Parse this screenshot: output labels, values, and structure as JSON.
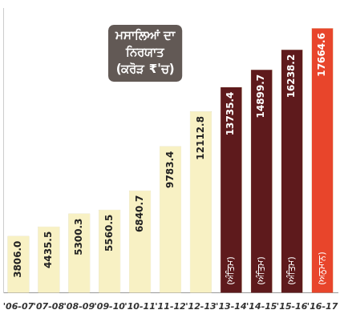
{
  "chart_data": {
    "type": "bar",
    "title": "ਮਸਾਲਿਆਂ ਦਾ ਨਿਰਯਾਤ",
    "subtitle": "(ਕਰੋੜ ₹'ਚ)",
    "categories": [
      "'06-07",
      "'07-08",
      "'08-09",
      "'09-10",
      "'10-11",
      "'11-12",
      "'12-13",
      "'13-14",
      "'14-15",
      "'15-16",
      "'16-17"
    ],
    "values": [
      3806.0,
      4435.5,
      5300.3,
      5560.5,
      6840.7,
      9783.4,
      12112.8,
      13735.4,
      14899.7,
      16238.2,
      17664.6
    ],
    "value_labels": [
      "3806.0",
      "4435.5",
      "5300.3",
      "5560.5",
      "6840.7",
      "9783.4",
      "12112.8",
      "13735.4",
      "14899.7",
      "16238.2",
      "17664.6"
    ],
    "colors": [
      "#f8f1c4",
      "#f8f1c4",
      "#f8f1c4",
      "#f8f1c4",
      "#f8f1c4",
      "#f8f1c4",
      "#f8f1c4",
      "#5e1a1c",
      "#5e1a1c",
      "#5e1a1c",
      "#e8452b"
    ],
    "annotations": [
      {
        "category": "'13-14",
        "text": "(ਅੰਤਿਮ)"
      },
      {
        "category": "'14-15",
        "text": "(ਅੰਤਿਮ)"
      },
      {
        "category": "'15-16",
        "text": "(ਅੰਤਿਮ)"
      },
      {
        "category": "'16-17",
        "text": "(ਅਨੁਮਾਨ)"
      }
    ],
    "ylim": [
      0,
      19000
    ],
    "grid": false,
    "data_labels": true,
    "tick_labels": "x"
  }
}
